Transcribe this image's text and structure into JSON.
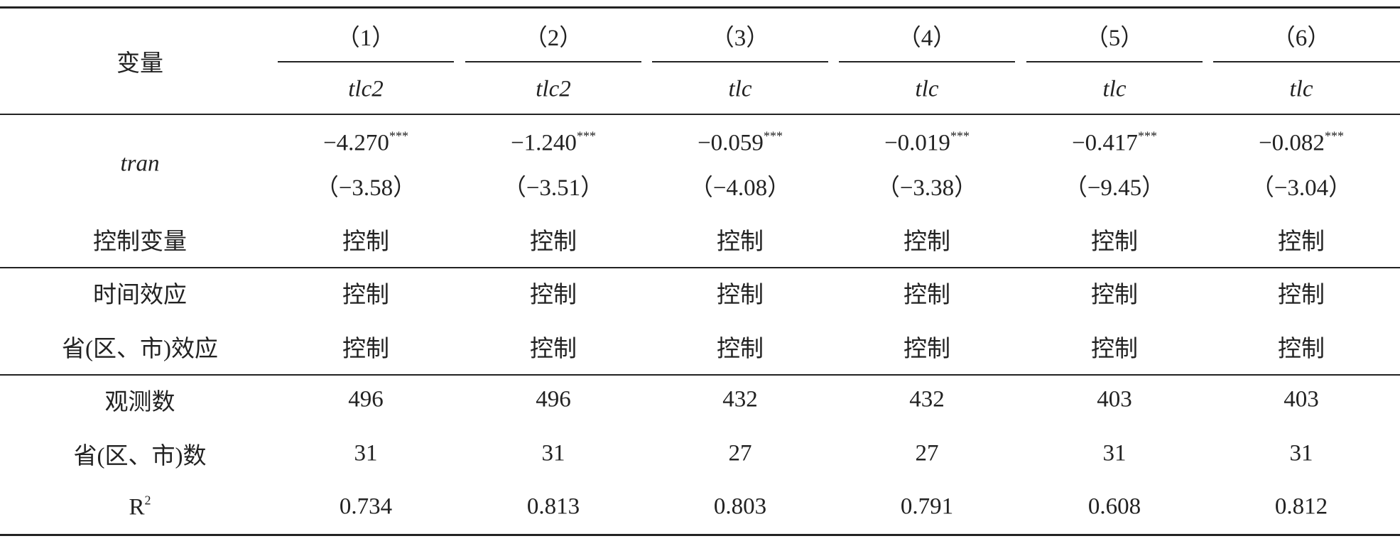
{
  "header": {
    "label": "变量",
    "columns": [
      "（1）",
      "（2）",
      "（3）",
      "（4）",
      "（5）",
      "（6）"
    ],
    "dependent": [
      "tlc2",
      "tlc2",
      "tlc",
      "tlc",
      "tlc",
      "tlc"
    ]
  },
  "tran": {
    "label": "tran",
    "coefficients": [
      "−4.270",
      "−1.240",
      "−0.059",
      "−0.019",
      "−0.417",
      "−0.082"
    ],
    "stars": [
      "***",
      "***",
      "***",
      "***",
      "***",
      "***"
    ],
    "t_stats": [
      "（−3.58）",
      "（−3.51）",
      "（−4.08）",
      "（−3.38）",
      "（−9.45）",
      "（−3.04）"
    ]
  },
  "rows": [
    {
      "label": "控制变量",
      "values": [
        "控制",
        "控制",
        "控制",
        "控制",
        "控制",
        "控制"
      ]
    },
    {
      "label": "时间效应",
      "values": [
        "控制",
        "控制",
        "控制",
        "控制",
        "控制",
        "控制"
      ]
    },
    {
      "label": "省(区、市)效应",
      "values": [
        "控制",
        "控制",
        "控制",
        "控制",
        "控制",
        "控制"
      ]
    },
    {
      "label": "观测数",
      "values": [
        496,
        496,
        432,
        432,
        403,
        403
      ]
    },
    {
      "label": "省(区、市)数",
      "values": [
        31,
        31,
        27,
        27,
        31,
        31
      ]
    },
    {
      "label": "R",
      "label_sup": "2",
      "values": [
        0.734,
        0.813,
        0.803,
        0.791,
        0.608,
        0.812
      ]
    }
  ]
}
